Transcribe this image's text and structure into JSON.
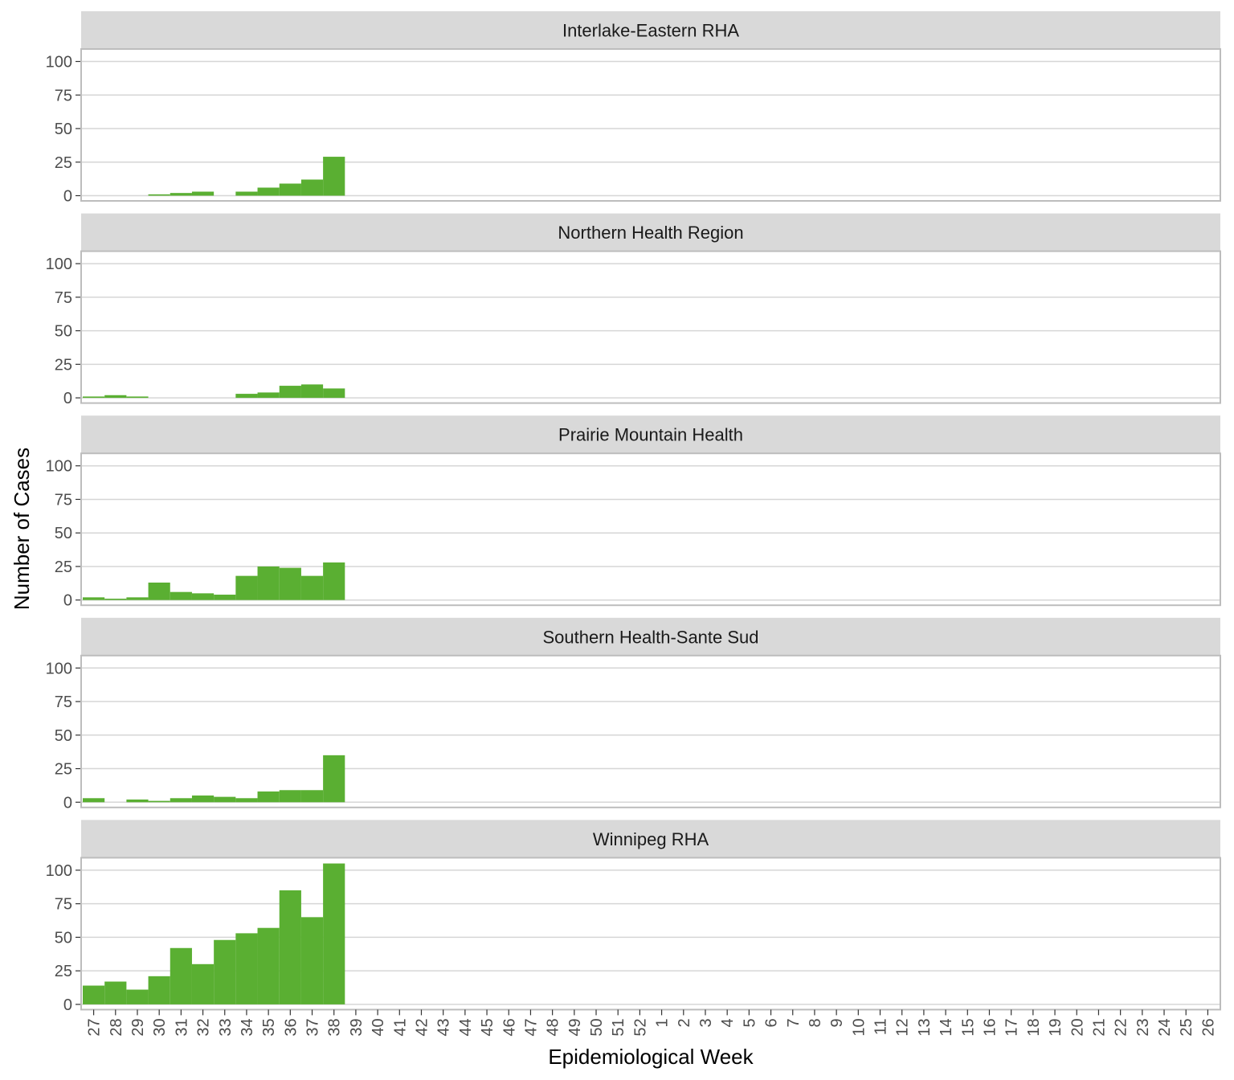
{
  "chart_data": {
    "type": "bar",
    "xlabel": "Epidemiological Week",
    "ylabel": "Number of Cases",
    "ylim": [
      0,
      110
    ],
    "yticks": [
      0,
      25,
      50,
      75,
      100
    ],
    "grid": true,
    "bar_color": "#5AAF32",
    "weeks": [
      "27",
      "28",
      "29",
      "30",
      "31",
      "32",
      "33",
      "34",
      "35",
      "36",
      "37",
      "38",
      "39",
      "40",
      "41",
      "42",
      "43",
      "44",
      "45",
      "46",
      "47",
      "48",
      "49",
      "50",
      "51",
      "52",
      "1",
      "2",
      "3",
      "4",
      "5",
      "6",
      "7",
      "8",
      "9",
      "10",
      "11",
      "12",
      "13",
      "14",
      "15",
      "16",
      "17",
      "18",
      "19",
      "20",
      "21",
      "22",
      "23",
      "24",
      "25",
      "26"
    ],
    "panels": [
      {
        "title": "Interlake-Eastern RHA",
        "values": [
          0,
          0,
          0,
          1,
          2,
          3,
          0,
          3,
          6,
          9,
          12,
          29,
          0,
          0,
          0,
          0,
          0,
          0,
          0,
          0,
          0,
          0,
          0,
          0,
          0,
          0,
          0,
          0,
          0,
          0,
          0,
          0,
          0,
          0,
          0,
          0,
          0,
          0,
          0,
          0,
          0,
          0,
          0,
          0,
          0,
          0,
          0,
          0,
          0,
          0,
          0,
          0
        ]
      },
      {
        "title": "Northern Health Region",
        "values": [
          1,
          2,
          1,
          0,
          0,
          0,
          0,
          3,
          4,
          9,
          10,
          7,
          0,
          0,
          0,
          0,
          0,
          0,
          0,
          0,
          0,
          0,
          0,
          0,
          0,
          0,
          0,
          0,
          0,
          0,
          0,
          0,
          0,
          0,
          0,
          0,
          0,
          0,
          0,
          0,
          0,
          0,
          0,
          0,
          0,
          0,
          0,
          0,
          0,
          0,
          0,
          0
        ]
      },
      {
        "title": "Prairie Mountain Health",
        "values": [
          2,
          1,
          2,
          13,
          6,
          5,
          4,
          18,
          25,
          24,
          18,
          28,
          0,
          0,
          0,
          0,
          0,
          0,
          0,
          0,
          0,
          0,
          0,
          0,
          0,
          0,
          0,
          0,
          0,
          0,
          0,
          0,
          0,
          0,
          0,
          0,
          0,
          0,
          0,
          0,
          0,
          0,
          0,
          0,
          0,
          0,
          0,
          0,
          0,
          0,
          0,
          0
        ]
      },
      {
        "title": "Southern Health-Sante Sud",
        "values": [
          3,
          0,
          2,
          1,
          3,
          5,
          4,
          3,
          8,
          9,
          9,
          35,
          0,
          0,
          0,
          0,
          0,
          0,
          0,
          0,
          0,
          0,
          0,
          0,
          0,
          0,
          0,
          0,
          0,
          0,
          0,
          0,
          0,
          0,
          0,
          0,
          0,
          0,
          0,
          0,
          0,
          0,
          0,
          0,
          0,
          0,
          0,
          0,
          0,
          0,
          0,
          0
        ]
      },
      {
        "title": "Winnipeg RHA",
        "values": [
          14,
          17,
          11,
          21,
          42,
          30,
          48,
          53,
          57,
          85,
          65,
          105,
          0,
          0,
          0,
          0,
          0,
          0,
          0,
          0,
          0,
          0,
          0,
          0,
          0,
          0,
          0,
          0,
          0,
          0,
          0,
          0,
          0,
          0,
          0,
          0,
          0,
          0,
          0,
          0,
          0,
          0,
          0,
          0,
          0,
          0,
          0,
          0,
          0,
          0,
          0,
          0
        ]
      }
    ]
  }
}
